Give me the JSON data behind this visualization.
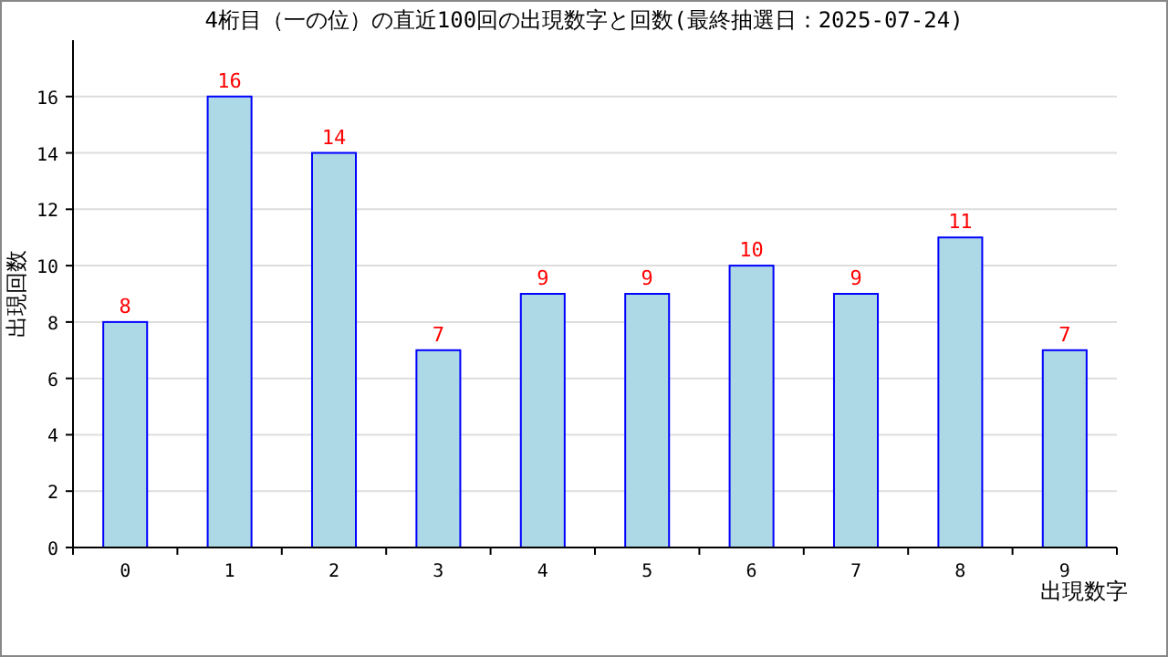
{
  "chart_data": {
    "type": "bar",
    "title": "4桁目（一の位）の直近100回の出現数字と回数(最終抽選日：2025-07-24)",
    "xlabel": "出現数字",
    "ylabel": "出現回数",
    "categories": [
      "0",
      "1",
      "2",
      "3",
      "4",
      "5",
      "6",
      "7",
      "8",
      "9"
    ],
    "values": [
      8,
      16,
      14,
      7,
      9,
      9,
      10,
      9,
      11,
      7
    ],
    "color": "#add8e6",
    "ylim": [
      0,
      18
    ],
    "yticks": [
      0,
      2,
      4,
      6,
      8,
      10,
      12,
      14,
      16
    ],
    "grid": "y",
    "data_labels": true
  }
}
